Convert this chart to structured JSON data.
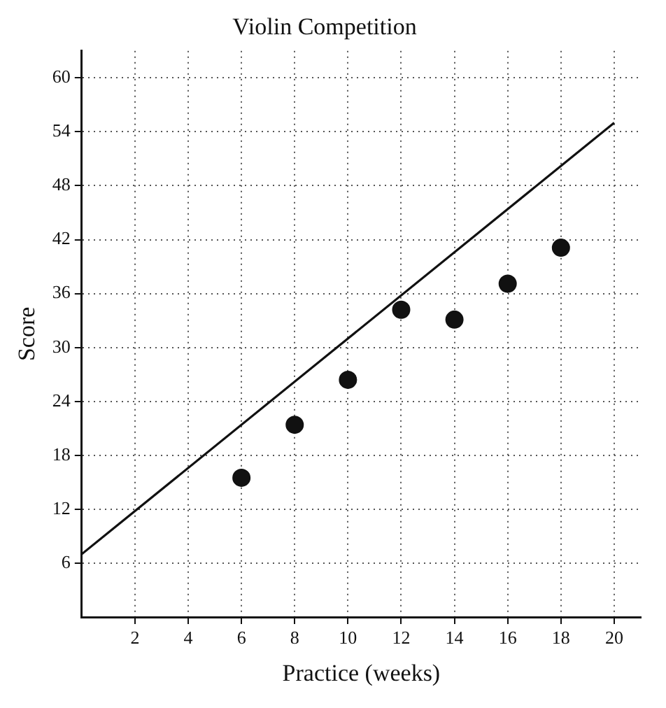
{
  "chart_data": {
    "type": "scatter",
    "title": "Violin Competition",
    "xlabel": "Practice (weeks)",
    "ylabel": "Score",
    "marker": "circle",
    "grid": true,
    "legend": false,
    "xlim": [
      0,
      21
    ],
    "xticks": [
      2,
      4,
      6,
      8,
      10,
      12,
      14,
      16,
      18,
      20
    ],
    "ylim": [
      0,
      63
    ],
    "yticks": [
      6,
      12,
      18,
      24,
      30,
      36,
      42,
      48,
      54,
      60
    ],
    "series": [
      {
        "color": "#111111",
        "x": [
          6,
          8,
          10,
          12,
          14,
          16,
          18
        ],
        "values": [
          15.5,
          21.4,
          26.4,
          34.2,
          33.1,
          37.1,
          41.1
        ]
      },
      {
        "type": "line",
        "color": "#111111",
        "x": [
          0,
          20
        ],
        "values": [
          7,
          55
        ],
        "marker": "none",
        "line_style": "solid"
      }
    ]
  }
}
